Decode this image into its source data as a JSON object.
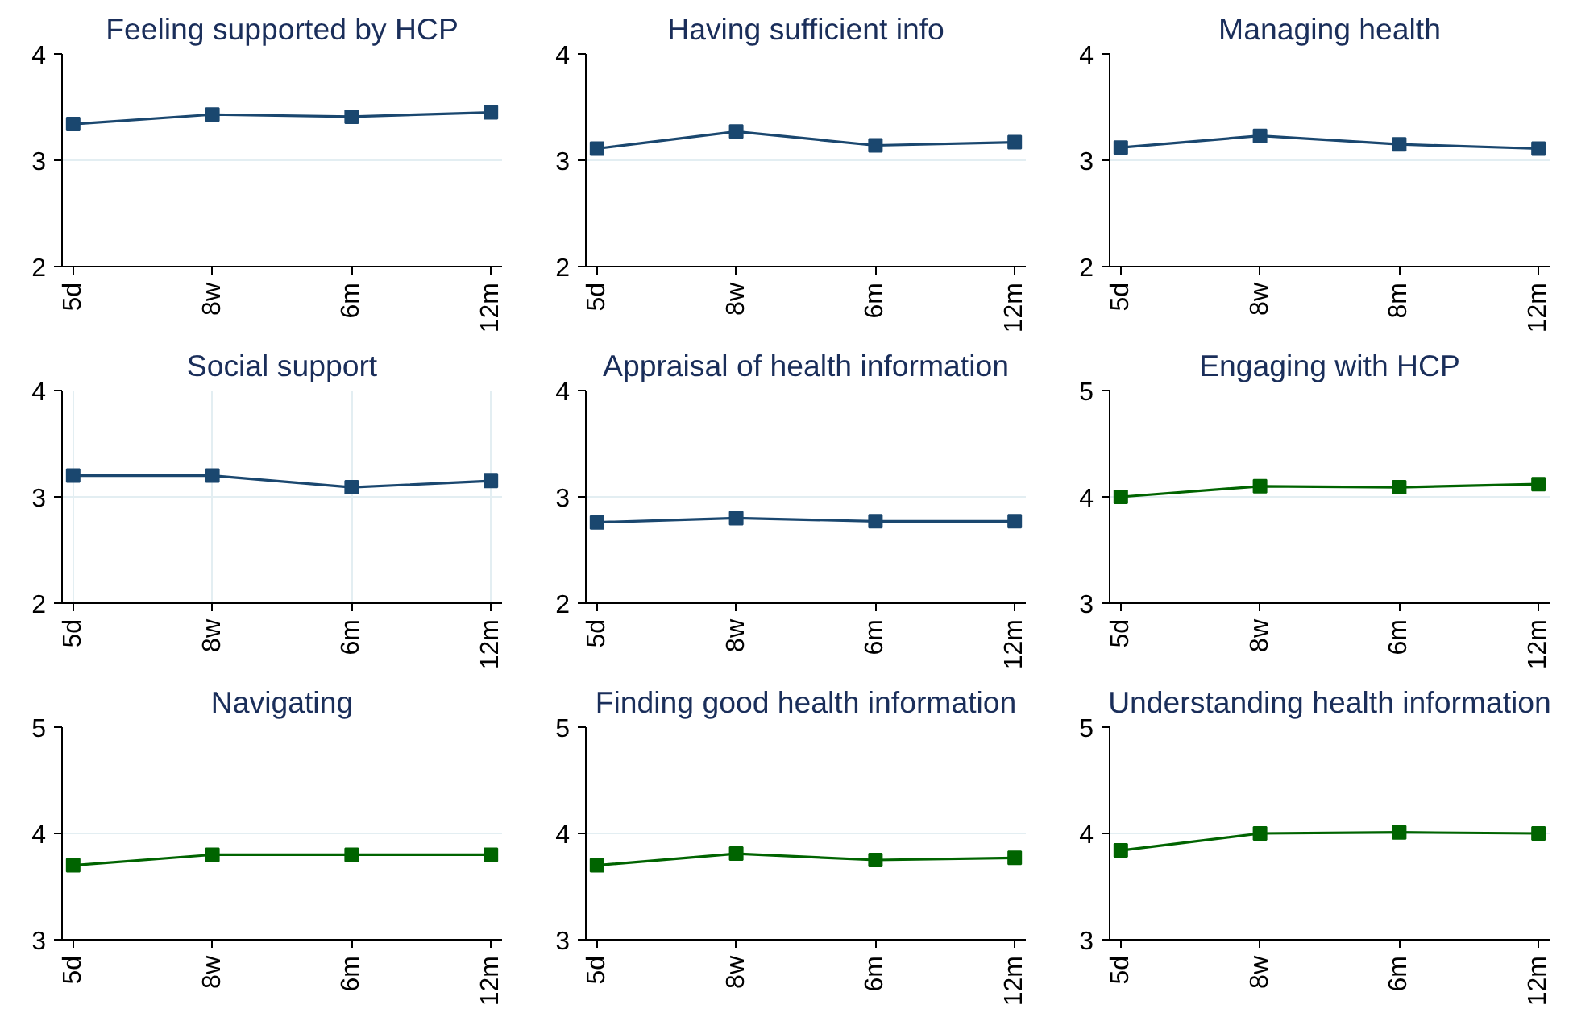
{
  "chart_data": [
    {
      "type": "line",
      "title": "Feeling supported by HCP",
      "categories": [
        "5d",
        "8w",
        "6m",
        "12m"
      ],
      "ylim": [
        2,
        4
      ],
      "yticks": [
        2,
        3,
        4
      ],
      "grid": "y",
      "marker": "square",
      "series": [
        {
          "color": "#1a476f",
          "values": [
            3.34,
            3.43,
            3.41,
            3.45
          ],
          "errors": [
            0.04,
            0.04,
            0.04,
            0.04
          ]
        }
      ]
    },
    {
      "type": "line",
      "title": "Having sufficient info",
      "categories": [
        "5d",
        "8w",
        "6m",
        "12m"
      ],
      "ylim": [
        2,
        4
      ],
      "yticks": [
        2,
        3,
        4
      ],
      "grid": "y",
      "marker": "square",
      "series": [
        {
          "color": "#1a476f",
          "values": [
            3.11,
            3.27,
            3.14,
            3.17
          ],
          "errors": [
            0.04,
            0.04,
            0.04,
            0.04
          ]
        }
      ]
    },
    {
      "type": "line",
      "title": "Managing health",
      "categories": [
        "5d",
        "8w",
        "8m",
        "12m"
      ],
      "ylim": [
        2,
        4
      ],
      "yticks": [
        2,
        3,
        4
      ],
      "grid": "y",
      "marker": "square",
      "series": [
        {
          "color": "#1a476f",
          "values": [
            3.12,
            3.23,
            3.15,
            3.11
          ],
          "errors": [
            0.04,
            0.04,
            0.04,
            0.04
          ]
        }
      ]
    },
    {
      "type": "line",
      "title": "Social support",
      "categories": [
        "5d",
        "8w",
        "6m",
        "12m"
      ],
      "ylim": [
        2,
        4
      ],
      "yticks": [
        2,
        3,
        4
      ],
      "grid": true,
      "marker": "square",
      "series": [
        {
          "color": "#1a476f",
          "values": [
            3.2,
            3.2,
            3.09,
            3.15
          ],
          "errors": [
            0.04,
            0.04,
            0.04,
            0.04
          ]
        }
      ]
    },
    {
      "type": "line",
      "title": "Appraisal of health information",
      "categories": [
        "5d",
        "8w",
        "6m",
        "12m"
      ],
      "ylim": [
        2,
        4
      ],
      "yticks": [
        2,
        3,
        4
      ],
      "grid": "y",
      "marker": "square",
      "series": [
        {
          "color": "#1a476f",
          "values": [
            2.76,
            2.8,
            2.77,
            2.77
          ],
          "errors": [
            0.04,
            0.04,
            0.04,
            0.04
          ]
        }
      ]
    },
    {
      "type": "line",
      "title": "Engaging with HCP",
      "categories": [
        "5d",
        "8w",
        "6m",
        "12m"
      ],
      "ylim": [
        3,
        5
      ],
      "yticks": [
        3,
        4,
        5
      ],
      "grid": "y",
      "marker": "square",
      "series": [
        {
          "color": "#006400",
          "values": [
            4.0,
            4.1,
            4.09,
            4.12
          ],
          "errors": [
            0.04,
            0.04,
            0.04,
            0.04
          ]
        }
      ]
    },
    {
      "type": "line",
      "title": "Navigating",
      "categories": [
        "5d",
        "8w",
        "6m",
        "12m"
      ],
      "ylim": [
        3,
        5
      ],
      "yticks": [
        3,
        4,
        5
      ],
      "grid": "y",
      "marker": "square",
      "series": [
        {
          "color": "#006400",
          "values": [
            3.7,
            3.8,
            3.8,
            3.8
          ],
          "errors": [
            0.04,
            0.04,
            0.04,
            0.04
          ]
        }
      ]
    },
    {
      "type": "line",
      "title": "Finding good health information",
      "categories": [
        "5d",
        "8w",
        "6m",
        "12m"
      ],
      "ylim": [
        3,
        5
      ],
      "yticks": [
        3,
        4,
        5
      ],
      "grid": "y",
      "marker": "square",
      "series": [
        {
          "color": "#006400",
          "values": [
            3.7,
            3.81,
            3.75,
            3.77
          ],
          "errors": [
            0.04,
            0.04,
            0.04,
            0.04
          ]
        }
      ]
    },
    {
      "type": "line",
      "title": "Understanding health information",
      "categories": [
        "5d",
        "8w",
        "6m",
        "12m"
      ],
      "ylim": [
        3,
        5
      ],
      "yticks": [
        3,
        4,
        5
      ],
      "grid": "y",
      "marker": "square",
      "series": [
        {
          "color": "#006400",
          "values": [
            3.84,
            4.0,
            4.01,
            4.0
          ],
          "errors": [
            0.04,
            0.04,
            0.04,
            0.04
          ]
        }
      ]
    }
  ]
}
